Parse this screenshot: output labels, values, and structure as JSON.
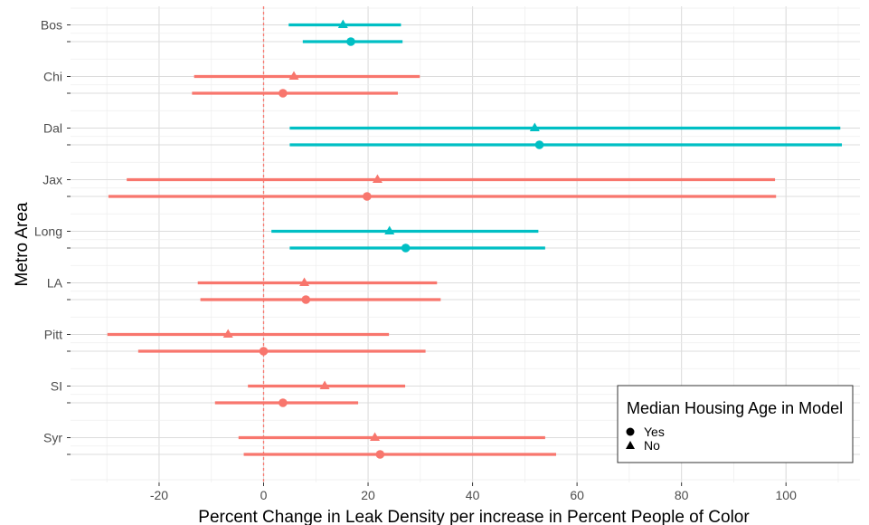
{
  "chart_data": {
    "type": "scatter",
    "title": "",
    "xlabel": "Percent Change in Leak Density per increase in Percent People of Color",
    "ylabel": "Metro Area",
    "xlim": [
      -37,
      115
    ],
    "x_ticks": [
      -20,
      0,
      20,
      40,
      60,
      80,
      100
    ],
    "reference_line_x": 0,
    "grid": true,
    "categories": [
      "Bos",
      "Chi",
      "Dal",
      "Jax",
      "Long",
      "LA",
      "Pitt",
      "SI",
      "Syr"
    ],
    "significance_colors": {
      "significant": "#00BFC4",
      "not_significant": "#F8766D"
    },
    "series": [
      {
        "name": "No",
        "marker": "triangle",
        "points": [
          {
            "category": "Bos",
            "estimate": 15.2,
            "lower": 4.8,
            "upper": 26.3,
            "significant": true
          },
          {
            "category": "Chi",
            "estimate": 5.8,
            "lower": -13.3,
            "upper": 29.9,
            "significant": false
          },
          {
            "category": "Dal",
            "estimate": 51.9,
            "lower": 5.0,
            "upper": 110.4,
            "significant": true
          },
          {
            "category": "Jax",
            "estimate": 21.8,
            "lower": -26.2,
            "upper": 97.9,
            "significant": false
          },
          {
            "category": "Long",
            "estimate": 24.1,
            "lower": 1.5,
            "upper": 52.6,
            "significant": true
          },
          {
            "category": "LA",
            "estimate": 7.8,
            "lower": -12.6,
            "upper": 33.2,
            "significant": false
          },
          {
            "category": "Pitt",
            "estimate": -6.8,
            "lower": -29.9,
            "upper": 24.0,
            "significant": false
          },
          {
            "category": "SI",
            "estimate": 11.7,
            "lower": -3.0,
            "upper": 27.1,
            "significant": false
          },
          {
            "category": "Syr",
            "estimate": 21.3,
            "lower": -4.8,
            "upper": 53.9,
            "significant": false
          }
        ]
      },
      {
        "name": "Yes",
        "marker": "circle",
        "points": [
          {
            "category": "Bos",
            "estimate": 16.7,
            "lower": 7.5,
            "upper": 26.6,
            "significant": true
          },
          {
            "category": "Chi",
            "estimate": 3.7,
            "lower": -13.7,
            "upper": 25.7,
            "significant": false
          },
          {
            "category": "Dal",
            "estimate": 52.8,
            "lower": 5.0,
            "upper": 110.7,
            "significant": true
          },
          {
            "category": "Jax",
            "estimate": 19.8,
            "lower": -29.7,
            "upper": 98.1,
            "significant": false
          },
          {
            "category": "Long",
            "estimate": 27.2,
            "lower": 5.0,
            "upper": 53.9,
            "significant": true
          },
          {
            "category": "LA",
            "estimate": 8.1,
            "lower": -12.1,
            "upper": 33.9,
            "significant": false
          },
          {
            "category": "Pitt",
            "estimate": 0.0,
            "lower": -24.0,
            "upper": 31.0,
            "significant": false
          },
          {
            "category": "SI",
            "estimate": 3.7,
            "lower": -9.3,
            "upper": 18.1,
            "significant": false
          },
          {
            "category": "Syr",
            "estimate": 22.3,
            "lower": -3.8,
            "upper": 56.0,
            "significant": false
          }
        ]
      }
    ],
    "legend": {
      "title": "Median Housing Age in Model",
      "placement": "bottom-right-inside",
      "entries": [
        {
          "label": "Yes",
          "marker": "circle"
        },
        {
          "label": "No",
          "marker": "triangle"
        }
      ]
    }
  }
}
